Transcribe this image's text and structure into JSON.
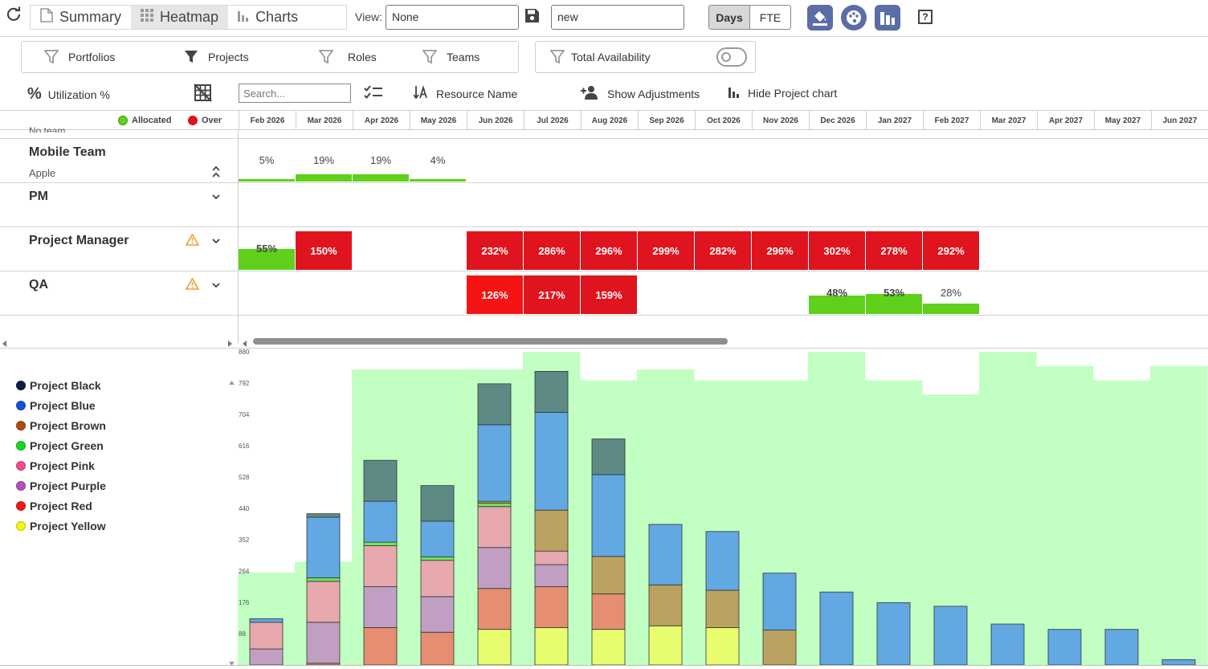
{
  "toolbar": {
    "tabs": [
      {
        "label": "Summary",
        "active": false
      },
      {
        "label": "Heatmap",
        "active": true
      },
      {
        "label": "Charts",
        "active": false
      }
    ],
    "view_label": "View:",
    "view_value": "None",
    "name_value": "new",
    "unit_toggle": [
      {
        "label": "Days",
        "active": true
      },
      {
        "label": "FTE",
        "active": false
      }
    ],
    "help_label": "?"
  },
  "filters": {
    "portfolios": "Portfolios",
    "projects": "Projects",
    "roles": "Roles",
    "teams": "Teams",
    "total_availability": "Total Availability",
    "total_availability_on": false
  },
  "tools": {
    "utilization": "Utilization %",
    "search_placeholder": "Search...",
    "resource_name": "Resource Name",
    "show_adjustments": "Show Adjustments",
    "hide_chart": "Hide Project chart"
  },
  "heatmap": {
    "legend": {
      "allocated": "Allocated",
      "over": "Over",
      "allocated_color": "#5fd11c",
      "over_color": "#e0141e"
    },
    "months": [
      "Feb 2026",
      "Mar 2026",
      "Apr 2026",
      "May 2026",
      "Jun 2026",
      "Jul 2026",
      "Aug 2026",
      "Sep 2026",
      "Oct 2026",
      "Nov 2026",
      "Dec 2026",
      "Jan 2027",
      "Feb 2027",
      "Mar 2027",
      "Apr 2027",
      "May 2027",
      "Jun 2027"
    ],
    "clipped_row_label": "No team",
    "rows": [
      {
        "name": "Mobile Team",
        "sub": "Apple",
        "warning": false,
        "cells": [
          {
            "m": 0,
            "label": "5%",
            "level": 0.05,
            "over": false
          },
          {
            "m": 1,
            "label": "19%",
            "level": 0.19,
            "over": false
          },
          {
            "m": 2,
            "label": "19%",
            "level": 0.19,
            "over": false
          },
          {
            "m": 3,
            "label": "4%",
            "level": 0.04,
            "over": false
          }
        ]
      },
      {
        "name": "PM",
        "sub": "",
        "warning": false,
        "cells": []
      },
      {
        "name": "Project Manager",
        "sub": "",
        "warning": true,
        "cells": [
          {
            "m": 0,
            "label": "55%",
            "level": 0.55,
            "over": false
          },
          {
            "m": 1,
            "label": "150%",
            "level": 1.5,
            "over": true
          },
          {
            "m": 4,
            "label": "232%",
            "level": 2.32,
            "over": true
          },
          {
            "m": 5,
            "label": "286%",
            "level": 2.86,
            "over": true
          },
          {
            "m": 6,
            "label": "296%",
            "level": 2.96,
            "over": true
          },
          {
            "m": 7,
            "label": "299%",
            "level": 2.99,
            "over": true
          },
          {
            "m": 8,
            "label": "282%",
            "level": 2.82,
            "over": true
          },
          {
            "m": 9,
            "label": "296%",
            "level": 2.96,
            "over": true
          },
          {
            "m": 10,
            "label": "302%",
            "level": 3.02,
            "over": true
          },
          {
            "m": 11,
            "label": "278%",
            "level": 2.78,
            "over": true
          },
          {
            "m": 12,
            "label": "292%",
            "level": 2.92,
            "over": true
          }
        ]
      },
      {
        "name": "QA",
        "sub": "",
        "warning": true,
        "cells": [
          {
            "m": 4,
            "label": "126%",
            "level": 1.26,
            "over": true,
            "color": "#f51414"
          },
          {
            "m": 5,
            "label": "217%",
            "level": 2.17,
            "over": true
          },
          {
            "m": 6,
            "label": "159%",
            "level": 1.59,
            "over": true
          },
          {
            "m": 10,
            "label": "48%",
            "level": 0.48,
            "over": false
          },
          {
            "m": 11,
            "label": "53%",
            "level": 0.53,
            "over": false
          },
          {
            "m": 12,
            "label": "28%",
            "level": 0.28,
            "over": false
          }
        ]
      }
    ]
  },
  "legend_items": [
    {
      "name": "Project Black",
      "color": "#0c1f4a"
    },
    {
      "name": "Project Blue",
      "color": "#1152d9"
    },
    {
      "name": "Project Brown",
      "color": "#b04a10"
    },
    {
      "name": "Project Green",
      "color": "#19d61a"
    },
    {
      "name": "Project Pink",
      "color": "#f04d8e"
    },
    {
      "name": "Project Purple",
      "color": "#b44fc0"
    },
    {
      "name": "Project Red",
      "color": "#ee1a1a"
    },
    {
      "name": "Project Yellow",
      "color": "#f5f50e"
    }
  ],
  "chart_data": {
    "type": "bar",
    "stacked": true,
    "categories": [
      "Feb 2026",
      "Mar 2026",
      "Apr 2026",
      "May 2026",
      "Jun 2026",
      "Jul 2026",
      "Aug 2026",
      "Sep 2026",
      "Oct 2026",
      "Nov 2026",
      "Dec 2026",
      "Jan 2027",
      "Feb 2027",
      "Mar 2027",
      "Apr 2027",
      "May 2027",
      "Jun 2027"
    ],
    "y_ticks": [
      88,
      176,
      264,
      352,
      440,
      528,
      616,
      704,
      792,
      880
    ],
    "ylim": [
      0,
      880
    ],
    "availability": [
      260,
      290,
      830,
      830,
      830,
      880,
      800,
      830,
      800,
      800,
      880,
      800,
      760,
      880,
      840,
      800,
      840
    ],
    "availability_color": "#c2ffc2",
    "series": [
      {
        "project": "Project Yellow",
        "color": "#e7fd6e",
        "values": [
          0,
          0,
          0,
          0,
          100,
          105,
          100,
          110,
          105,
          0,
          0,
          0,
          0,
          0,
          0,
          0,
          0
        ]
      },
      {
        "project": "Project Red",
        "color": "#e58e72",
        "values": [
          0,
          5,
          105,
          92,
          115,
          115,
          100,
          0,
          0,
          0,
          0,
          0,
          0,
          0,
          0,
          0,
          0
        ]
      },
      {
        "project": "Project Purple",
        "color": "#c19fc3",
        "values": [
          45,
          115,
          115,
          100,
          115,
          62,
          0,
          0,
          0,
          0,
          0,
          0,
          0,
          0,
          0,
          0,
          0
        ]
      },
      {
        "project": "Project Pink",
        "color": "#e7a9ad",
        "values": [
          75,
          115,
          115,
          102,
          115,
          38,
          0,
          0,
          0,
          0,
          0,
          0,
          0,
          0,
          0,
          0,
          0
        ]
      },
      {
        "project": "Project Green",
        "color": "#6fe35c",
        "values": [
          0,
          10,
          10,
          10,
          10,
          0,
          0,
          0,
          0,
          0,
          0,
          0,
          0,
          0,
          0,
          0,
          0
        ]
      },
      {
        "project": "Project Brown",
        "color": "#bca260",
        "values": [
          0,
          0,
          0,
          0,
          5,
          115,
          105,
          115,
          105,
          98,
          0,
          0,
          0,
          0,
          0,
          0,
          0
        ]
      },
      {
        "project": "Project Blue",
        "color": "#62a8e2",
        "values": [
          10,
          170,
          115,
          100,
          215,
          275,
          230,
          170,
          165,
          160,
          205,
          175,
          165,
          115,
          100,
          100,
          15
        ]
      },
      {
        "project": "Project Black",
        "color": "#5e8a86",
        "values": [
          0,
          10,
          115,
          100,
          115,
          115,
          100,
          0,
          0,
          0,
          0,
          0,
          0,
          0,
          0,
          0,
          0
        ]
      }
    ]
  }
}
